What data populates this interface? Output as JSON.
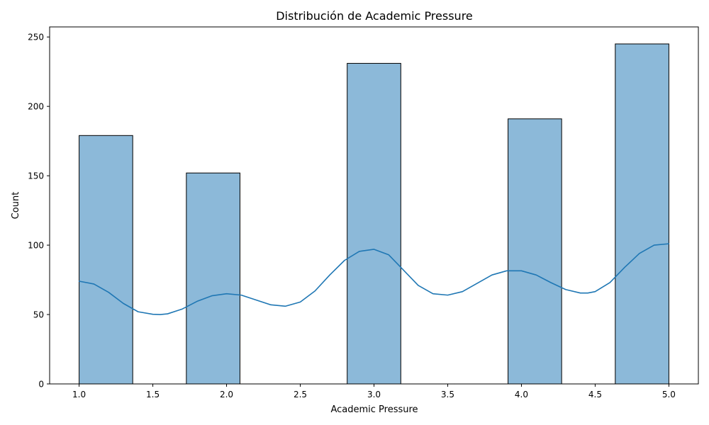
{
  "chart_data": {
    "type": "bar",
    "title": "Distribución de Academic Pressure",
    "xlabel": "Academic Pressure",
    "ylabel": "Count",
    "xlim": [
      0.8,
      5.2
    ],
    "ylim": [
      0,
      257.25
    ],
    "x_ticks": [
      1.0,
      1.5,
      2.0,
      2.5,
      3.0,
      3.5,
      4.0,
      4.5,
      5.0
    ],
    "x_tick_labels": [
      "1.0",
      "1.5",
      "2.0",
      "2.5",
      "3.0",
      "3.5",
      "4.0",
      "4.5",
      "5.0"
    ],
    "y_ticks": [
      0,
      50,
      100,
      150,
      200,
      250
    ],
    "y_tick_labels": [
      "0",
      "50",
      "100",
      "150",
      "200",
      "250"
    ],
    "bins": [
      {
        "x0": 1.0,
        "x1": 1.3636,
        "value": 179
      },
      {
        "x0": 1.3636,
        "x1": 1.7273,
        "value": 0
      },
      {
        "x0": 1.7273,
        "x1": 2.0909,
        "value": 152
      },
      {
        "x0": 2.0909,
        "x1": 2.4545,
        "value": 0
      },
      {
        "x0": 2.4545,
        "x1": 2.8182,
        "value": 0
      },
      {
        "x0": 2.8182,
        "x1": 3.1818,
        "value": 231
      },
      {
        "x0": 3.1818,
        "x1": 3.5455,
        "value": 0
      },
      {
        "x0": 3.5455,
        "x1": 3.9091,
        "value": 0
      },
      {
        "x0": 3.9091,
        "x1": 4.2727,
        "value": 191
      },
      {
        "x0": 4.2727,
        "x1": 4.6364,
        "value": 0
      },
      {
        "x0": 4.6364,
        "x1": 5.0,
        "value": 245
      }
    ],
    "kde": {
      "x": [
        1.0,
        1.1,
        1.2,
        1.3,
        1.4,
        1.5,
        1.55,
        1.6,
        1.7,
        1.8,
        1.9,
        2.0,
        2.1,
        2.2,
        2.3,
        2.4,
        2.5,
        2.6,
        2.7,
        2.8,
        2.9,
        3.0,
        3.1,
        3.2,
        3.3,
        3.4,
        3.5,
        3.6,
        3.7,
        3.8,
        3.9,
        4.0,
        4.1,
        4.2,
        4.3,
        4.4,
        4.45,
        4.5,
        4.6,
        4.7,
        4.8,
        4.9,
        5.0
      ],
      "y": [
        74,
        72,
        66,
        58,
        52,
        50.2,
        50,
        50.5,
        54,
        59.5,
        63.5,
        65,
        64,
        60.5,
        57,
        56,
        59,
        67,
        78.5,
        89,
        95.5,
        97,
        93,
        82,
        71,
        65,
        64,
        66.5,
        72.5,
        78.5,
        81.5,
        81.5,
        78.5,
        73,
        68,
        65.5,
        65.5,
        66.5,
        73,
        84,
        94,
        100,
        101
      ]
    },
    "colors": {
      "bar_fill": "#8cb9d9",
      "bar_edge": "#000000",
      "kde_line": "#1f77b4"
    },
    "grid": false,
    "legend": "none"
  }
}
